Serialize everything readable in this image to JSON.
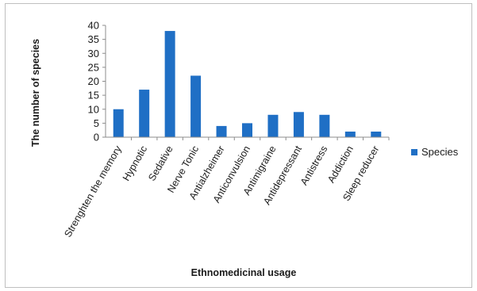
{
  "chart_data": {
    "type": "bar",
    "title": "",
    "xlabel": "Ethnomedicinal usage",
    "ylabel": "The number of species",
    "ylim": [
      0,
      40
    ],
    "yticks": [
      0,
      5,
      10,
      15,
      20,
      25,
      30,
      35,
      40
    ],
    "grid": false,
    "legend": "right",
    "categories": [
      "Strenghten the memory",
      "Hypnotic",
      "Sedative",
      "Nerve Tonic",
      "Antialzheimer",
      "Anticonvulsion",
      "Antimigraine",
      "Antidepressant",
      "Antistress",
      "Addiction",
      "Sleep reducer"
    ],
    "series": [
      {
        "name": "Species",
        "color": "#1f6fc5",
        "values": [
          10,
          17,
          38,
          22,
          4,
          5,
          8,
          9,
          8,
          2,
          2
        ]
      }
    ]
  }
}
